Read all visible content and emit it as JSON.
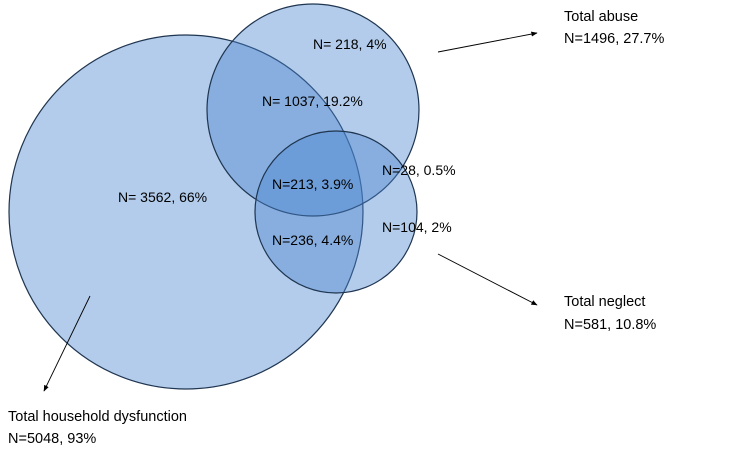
{
  "colors": {
    "circle_fill": "#4a86cf",
    "circle_stroke": "#1f3550",
    "text": "#000000",
    "background": "#ffffff"
  },
  "sets": {
    "household_dysfunction": {
      "label": "Total household dysfunction",
      "value": "N=5048, 93%"
    },
    "abuse": {
      "label": "Total abuse",
      "value": "N=1496, 27.7%"
    },
    "neglect": {
      "label": "Total neglect",
      "value": "N=581, 10.8%"
    }
  },
  "regions": {
    "household_only": "N= 3562, 66%",
    "abuse_only": "N= 218, 4%",
    "household_and_abuse": "N= 1037, 19.2%",
    "all_three": "N=213, 3.9%",
    "abuse_and_neglect": "N=28, 0.5%",
    "household_and_neglect": "N=236, 4.4%",
    "neglect_only": "N=104, 2%"
  }
}
